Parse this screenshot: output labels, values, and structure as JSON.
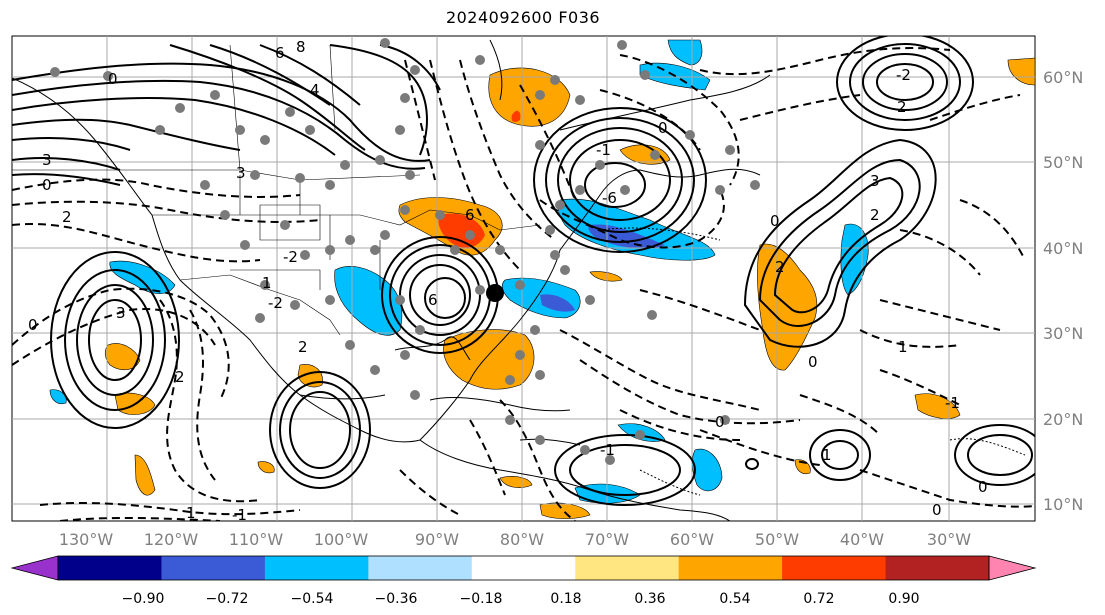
{
  "title": "2024092600 F036",
  "map": {
    "lon_labels": [
      "130°W",
      "120°W",
      "110°W",
      "100°W",
      "90°W",
      "80°W",
      "70°W",
      "60°W",
      "50°W",
      "40°W",
      "30°W"
    ],
    "lat_labels": [
      "60°N",
      "50°N",
      "40°N",
      "30°N",
      "20°N",
      "10°N"
    ],
    "contour_labels": [
      "6",
      "8",
      "4",
      "3",
      "0",
      "2",
      "-2",
      "6",
      "6",
      "-6",
      "0",
      "-1",
      "-2",
      "1",
      "2",
      "0",
      "3",
      "2",
      "1",
      "-1",
      "0",
      "-1",
      "0",
      "1",
      "3",
      "2",
      "-2",
      "0",
      "2",
      "1",
      "0",
      "-1",
      "0",
      "0",
      "6",
      "3",
      "2"
    ],
    "storm_marker": "black-dot"
  },
  "colorbar": {
    "ticks": [
      "−0.90",
      "−0.72",
      "−0.54",
      "−0.36",
      "−0.18",
      "0.18",
      "0.36",
      "0.54",
      "0.72",
      "0.90"
    ],
    "colors": [
      "#9932cc",
      "#00008b",
      "#3b5bd6",
      "#00bfff",
      "#b0e0ff",
      "#ffffff",
      "#ffe680",
      "#ffa500",
      "#ff3c00",
      "#b22222",
      "#ff85b0"
    ]
  }
}
